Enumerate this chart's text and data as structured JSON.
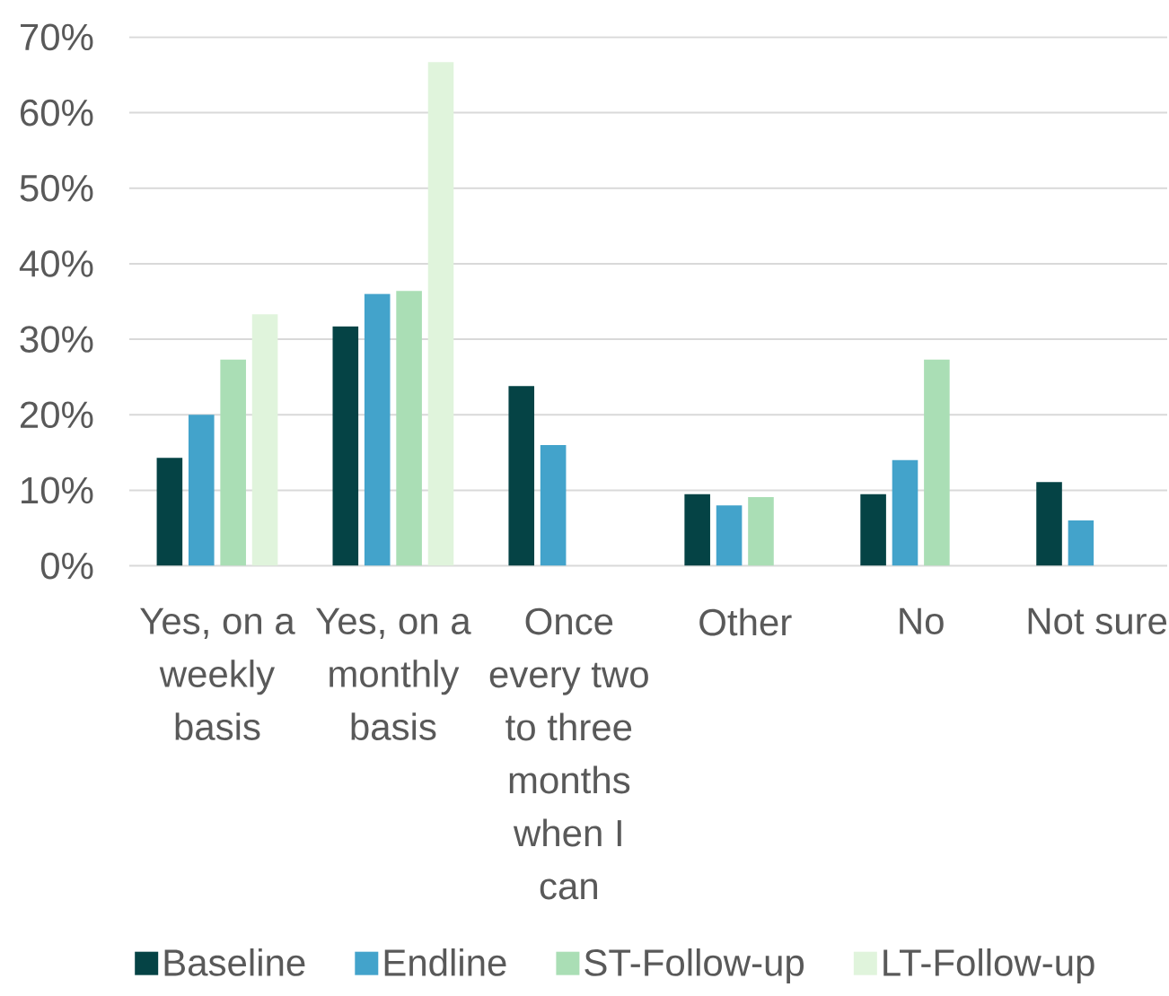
{
  "chart_data": {
    "type": "bar",
    "categories": [
      "Yes, on a weekly basis",
      "Yes, on a monthly basis",
      "Once every two to three months when I can",
      "Other",
      "No",
      "Not sure"
    ],
    "series": [
      {
        "name": "Baseline",
        "color": "#054345",
        "values": [
          14.3,
          31.7,
          23.8,
          9.5,
          9.5,
          11.1
        ]
      },
      {
        "name": "Endline",
        "color": "#43a3cb",
        "values": [
          20,
          36,
          16,
          8,
          14,
          6
        ]
      },
      {
        "name": "ST-Follow-up",
        "color": "#aadeb5",
        "values": [
          27.3,
          36.4,
          null,
          9.1,
          27.3,
          null
        ]
      },
      {
        "name": "LT-Follow-up",
        "color": "#e0f4dc",
        "values": [
          33.3,
          66.7,
          null,
          null,
          null,
          null
        ]
      }
    ],
    "ylim": [
      0,
      70
    ],
    "yticks": [
      {
        "value": 0,
        "label": "0%"
      },
      {
        "value": 10,
        "label": "10%"
      },
      {
        "value": 20,
        "label": "20%"
      },
      {
        "value": 30,
        "label": "30%"
      },
      {
        "value": 40,
        "label": "40%"
      },
      {
        "value": 50,
        "label": "50%"
      },
      {
        "value": 60,
        "label": "60%"
      },
      {
        "value": 70,
        "label": "70%"
      }
    ],
    "grid": "y",
    "legend": "bottom"
  }
}
